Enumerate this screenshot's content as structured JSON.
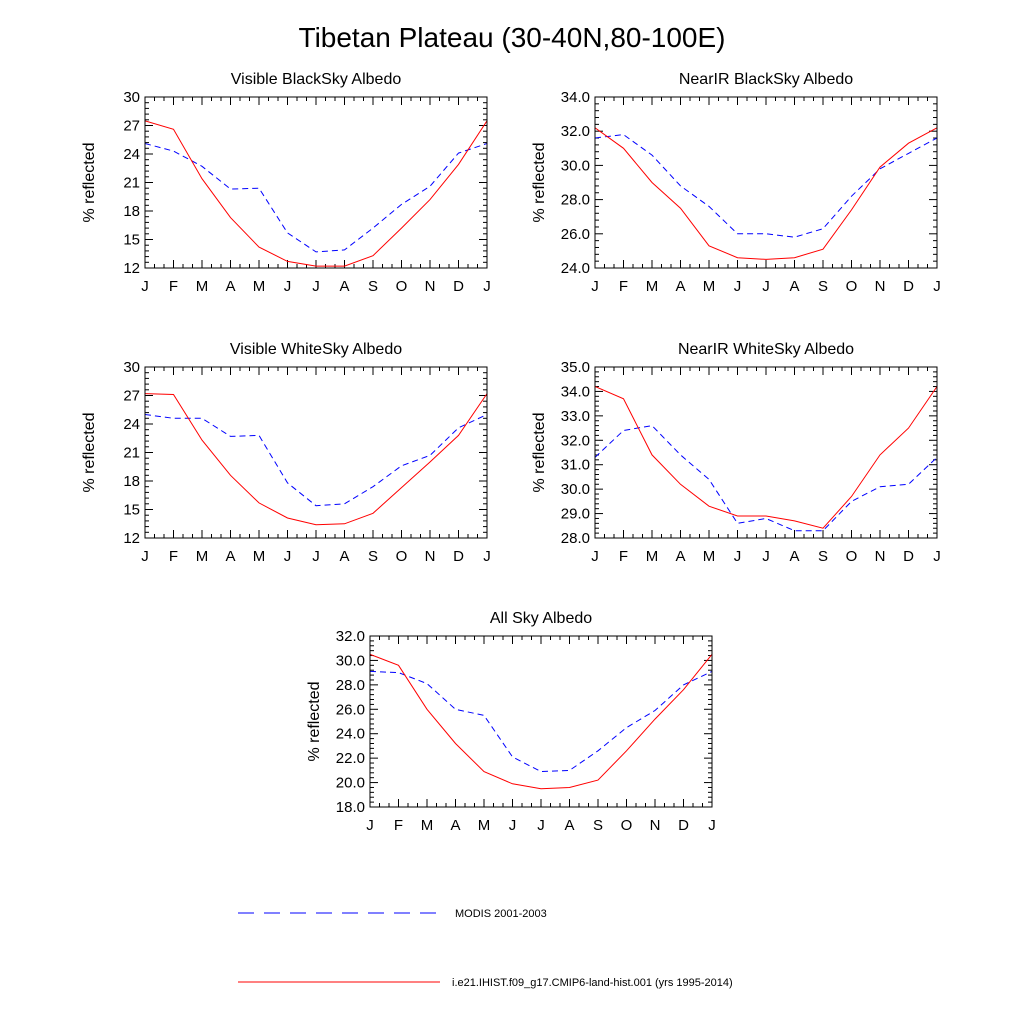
{
  "title": "Tibetan Plateau (30-40N,80-100E)",
  "chart_data": [
    {
      "type": "line",
      "title": "Visible BlackSky Albedo",
      "ylabel": "% reflected",
      "xlabel": "",
      "categories": [
        "J",
        "F",
        "M",
        "A",
        "M",
        "J",
        "J",
        "A",
        "S",
        "O",
        "N",
        "D",
        "J"
      ],
      "ylim": [
        12,
        30
      ],
      "yticks": [
        "12",
        "15",
        "18",
        "21",
        "24",
        "27",
        "30"
      ],
      "series": [
        {
          "name": "MODIS 2001-2003",
          "values": [
            25.1,
            24.3,
            22.7,
            20.3,
            20.4,
            15.7,
            13.7,
            13.9,
            16.2,
            18.7,
            20.6,
            24.1,
            25.1
          ]
        },
        {
          "name": "i.e21.IHIST.f09_g17.CMIP6-land-hist.001 (yrs 1995-2014)",
          "values": [
            27.5,
            26.6,
            21.4,
            17.3,
            14.2,
            12.7,
            12.2,
            12.2,
            13.3,
            16.2,
            19.2,
            22.9,
            27.5
          ]
        }
      ]
    },
    {
      "type": "line",
      "title": "NearIR BlackSky Albedo",
      "ylabel": "% reflected",
      "xlabel": "",
      "categories": [
        "J",
        "F",
        "M",
        "A",
        "M",
        "J",
        "J",
        "A",
        "S",
        "O",
        "N",
        "D",
        "J"
      ],
      "ylim": [
        24,
        34
      ],
      "yticks": [
        "24.0",
        "26.0",
        "28.0",
        "30.0",
        "32.0",
        "34.0"
      ],
      "series": [
        {
          "name": "MODIS 2001-2003",
          "values": [
            31.6,
            31.8,
            30.6,
            28.8,
            27.6,
            26.0,
            26.0,
            25.8,
            26.3,
            28.2,
            29.8,
            30.7,
            31.6
          ]
        },
        {
          "name": "i.e21.IHIST.f09_g17.CMIP6-land-hist.001 (yrs 1995-2014)",
          "values": [
            32.2,
            31.0,
            29.0,
            27.5,
            25.3,
            24.6,
            24.5,
            24.6,
            25.1,
            27.4,
            29.9,
            31.3,
            32.2
          ]
        }
      ]
    },
    {
      "type": "line",
      "title": "Visible WhiteSky Albedo",
      "ylabel": "% reflected",
      "xlabel": "",
      "categories": [
        "J",
        "F",
        "M",
        "A",
        "M",
        "J",
        "J",
        "A",
        "S",
        "O",
        "N",
        "D",
        "J"
      ],
      "ylim": [
        12,
        30
      ],
      "yticks": [
        "12",
        "15",
        "18",
        "21",
        "24",
        "27",
        "30"
      ],
      "series": [
        {
          "name": "MODIS 2001-2003",
          "values": [
            25.0,
            24.6,
            24.6,
            22.7,
            22.8,
            17.8,
            15.4,
            15.6,
            17.4,
            19.6,
            20.7,
            23.6,
            25.0
          ]
        },
        {
          "name": "i.e21.IHIST.f09_g17.CMIP6-land-hist.001 (yrs 1995-2014)",
          "values": [
            27.2,
            27.1,
            22.3,
            18.6,
            15.7,
            14.1,
            13.4,
            13.5,
            14.6,
            17.3,
            20.0,
            22.8,
            27.2
          ]
        }
      ]
    },
    {
      "type": "line",
      "title": "NearIR WhiteSky Albedo",
      "ylabel": "% reflected",
      "xlabel": "",
      "categories": [
        "J",
        "F",
        "M",
        "A",
        "M",
        "J",
        "J",
        "A",
        "S",
        "O",
        "N",
        "D",
        "J"
      ],
      "ylim": [
        28,
        35
      ],
      "yticks": [
        "28.0",
        "29.0",
        "30.0",
        "31.0",
        "32.0",
        "33.0",
        "34.0",
        "35.0"
      ],
      "series": [
        {
          "name": "MODIS 2001-2003",
          "values": [
            31.3,
            32.4,
            32.6,
            31.4,
            30.4,
            28.6,
            28.8,
            28.3,
            28.3,
            29.5,
            30.1,
            30.2,
            31.3
          ]
        },
        {
          "name": "i.e21.IHIST.f09_g17.CMIP6-land-hist.001 (yrs 1995-2014)",
          "values": [
            34.2,
            33.7,
            31.4,
            30.2,
            29.3,
            28.9,
            28.9,
            28.7,
            28.4,
            29.7,
            31.4,
            32.5,
            34.2
          ]
        }
      ]
    },
    {
      "type": "line",
      "title": "All Sky Albedo",
      "ylabel": "% reflected",
      "xlabel": "",
      "categories": [
        "J",
        "F",
        "M",
        "A",
        "M",
        "J",
        "J",
        "A",
        "S",
        "O",
        "N",
        "D",
        "J"
      ],
      "ylim": [
        18,
        32
      ],
      "yticks": [
        "18.0",
        "20.0",
        "22.0",
        "24.0",
        "26.0",
        "28.0",
        "30.0",
        "32.0"
      ],
      "series": [
        {
          "name": "MODIS 2001-2003",
          "values": [
            29.1,
            29.0,
            28.1,
            26.0,
            25.5,
            22.1,
            20.9,
            21.0,
            22.6,
            24.5,
            25.9,
            28.0,
            29.1
          ]
        },
        {
          "name": "i.e21.IHIST.f09_g17.CMIP6-land-hist.001 (yrs 1995-2014)",
          "values": [
            30.5,
            29.6,
            26.0,
            23.2,
            20.9,
            19.9,
            19.5,
            19.6,
            20.2,
            22.6,
            25.2,
            27.6,
            30.5
          ]
        }
      ]
    }
  ],
  "legend": {
    "placement": "bottom",
    "items": [
      {
        "label": "MODIS 2001-2003",
        "color": "#0000ff",
        "dash": "dashed"
      },
      {
        "label": "i.e21.IHIST.f09_g17.CMIP6-land-hist.001 (yrs 1995-2014)",
        "color": "#ff0000",
        "dash": "solid"
      }
    ]
  },
  "colors": {
    "modis": "#0000ff",
    "model": "#ff0000",
    "axis": "#000000"
  }
}
